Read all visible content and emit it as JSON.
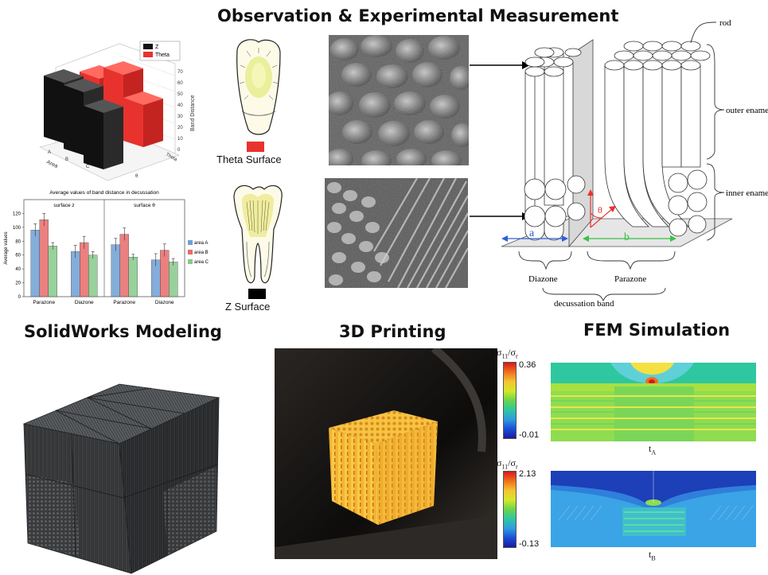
{
  "headings": {
    "observation": "Observation & Experimental Measurement",
    "solidworks": "SolidWorks Modeling",
    "printing": "3D Printing",
    "fem": "FEM Simulation"
  },
  "chart3d": {
    "legend": [
      "Z",
      "Theta"
    ],
    "colors": {
      "Z": "#111111",
      "Theta": "#e8322e"
    },
    "zlabel": "Band Distance",
    "xlabel": "Area",
    "ylabel": "Theta",
    "xticks": [
      "A",
      "B",
      "C"
    ],
    "yticks": [
      "z",
      "θ"
    ],
    "zticks": [
      "0",
      "10",
      "20",
      "30",
      "40",
      "50",
      "60",
      "70"
    ]
  },
  "chart_data": {
    "type": "bar",
    "title": "Average values of band distance in decussation",
    "ylabel": "Average values",
    "ylim": [
      0,
      140
    ],
    "yticks": [
      0,
      20,
      40,
      60,
      80,
      100,
      120
    ],
    "panels": [
      "surface z",
      "surface θ"
    ],
    "categories": [
      "Parazone",
      "Diazone",
      "Parazone",
      "Diazone"
    ],
    "series": [
      {
        "name": "area A",
        "color": "#6f9fd4",
        "values": [
          96,
          65,
          75,
          53
        ],
        "errors": [
          9,
          9,
          9,
          9
        ]
      },
      {
        "name": "area B",
        "color": "#e86a6a",
        "values": [
          111,
          78,
          90,
          67
        ],
        "errors": [
          9,
          9,
          9,
          9
        ]
      },
      {
        "name": "area C",
        "color": "#86c98a",
        "values": [
          73,
          60,
          57,
          50
        ],
        "errors": [
          5,
          5,
          4,
          5
        ]
      }
    ]
  },
  "teeth": {
    "theta_label": "Theta Surface",
    "z_label": "Z Surface",
    "theta_color": "#e8322e",
    "z_color": "#000000"
  },
  "diagram": {
    "rod": "rod",
    "outer": "outer enamel",
    "inner": "inner enamel",
    "a": "a",
    "b": "b",
    "theta": "θ",
    "diazone": "Diazone",
    "parazone": "Parazone",
    "band": "decussation band"
  },
  "fem": {
    "top_label_main": "σ",
    "top_label_sub": "11",
    "top_label_slash": "/σ",
    "top_label_sub2": "r",
    "top_max": "0.36",
    "top_min": "-0.01",
    "bottom_max": "2.13",
    "bottom_min": "-0.13",
    "top_caption_main": "t",
    "top_caption_sub": "A",
    "bottom_caption_main": "t",
    "bottom_caption_sub": "B"
  }
}
